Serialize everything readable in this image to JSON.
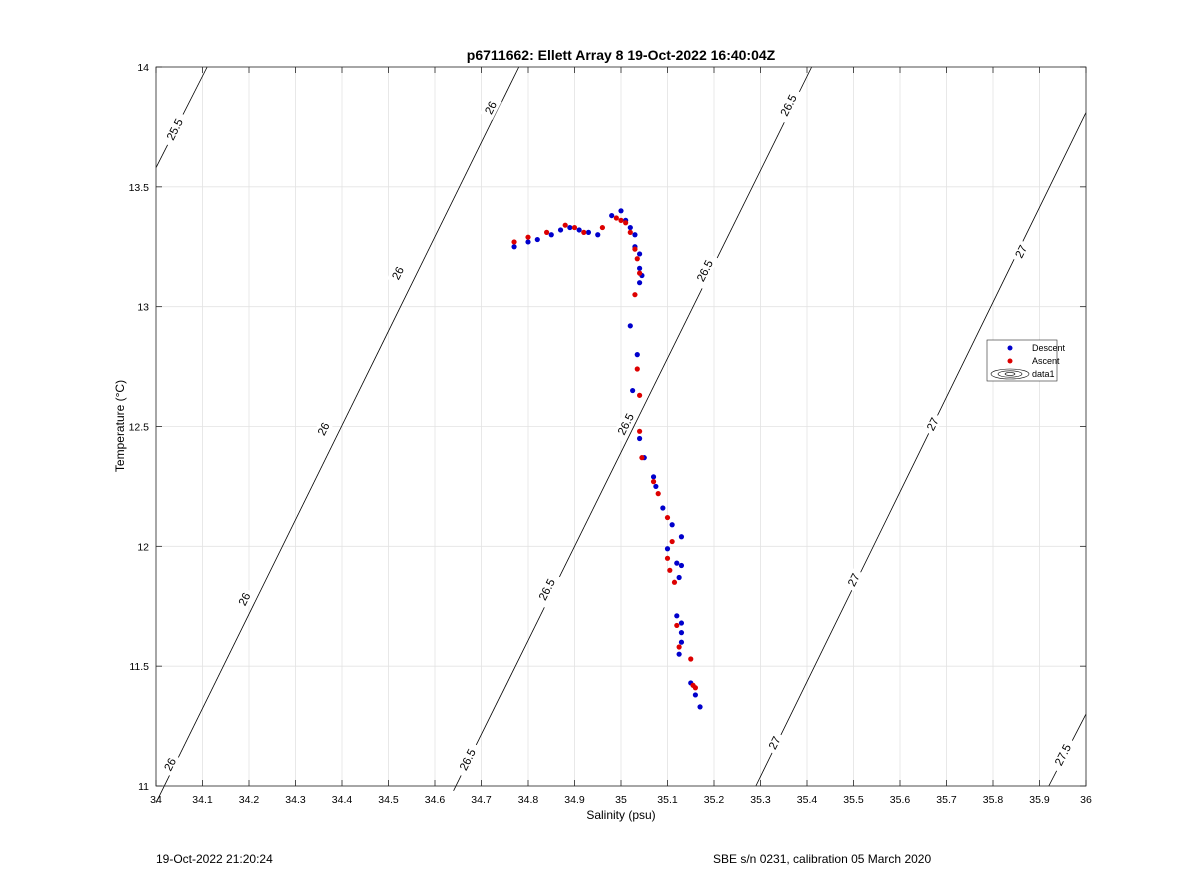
{
  "chart_data": {
    "type": "scatter",
    "title": "p6711662: Ellett Array 8 19-Oct-2022 16:40:04Z",
    "xlabel": "Salinity (psu)",
    "ylabel": "Temperature (°C)",
    "xlim": [
      34,
      36
    ],
    "ylim": [
      11,
      14
    ],
    "grid": true,
    "legend_position": "right",
    "x_ticks": [
      "34",
      "34.1",
      "34.2",
      "34.3",
      "34.4",
      "34.5",
      "34.6",
      "34.7",
      "34.8",
      "34.9",
      "35",
      "35.1",
      "35.2",
      "35.3",
      "35.4",
      "35.5",
      "35.6",
      "35.7",
      "35.8",
      "35.9",
      "36"
    ],
    "y_ticks": [
      "11",
      "11.5",
      "12",
      "12.5",
      "13",
      "13.5",
      "14"
    ],
    "series": [
      {
        "name": "Descent",
        "color": "#0000cc",
        "points": [
          [
            34.77,
            13.25
          ],
          [
            34.8,
            13.27
          ],
          [
            34.82,
            13.28
          ],
          [
            34.85,
            13.3
          ],
          [
            34.87,
            13.32
          ],
          [
            34.89,
            13.33
          ],
          [
            34.91,
            13.32
          ],
          [
            34.93,
            13.31
          ],
          [
            34.95,
            13.3
          ],
          [
            34.98,
            13.38
          ],
          [
            35.0,
            13.4
          ],
          [
            35.01,
            13.36
          ],
          [
            35.02,
            13.33
          ],
          [
            35.03,
            13.3
          ],
          [
            35.03,
            13.25
          ],
          [
            35.04,
            13.22
          ],
          [
            35.04,
            13.16
          ],
          [
            35.045,
            13.13
          ],
          [
            35.04,
            13.1
          ],
          [
            35.02,
            12.92
          ],
          [
            35.035,
            12.8
          ],
          [
            35.025,
            12.65
          ],
          [
            35.04,
            12.45
          ],
          [
            35.05,
            12.37
          ],
          [
            35.07,
            12.29
          ],
          [
            35.075,
            12.25
          ],
          [
            35.09,
            12.16
          ],
          [
            35.11,
            12.09
          ],
          [
            35.13,
            12.04
          ],
          [
            35.1,
            11.99
          ],
          [
            35.12,
            11.93
          ],
          [
            35.13,
            11.92
          ],
          [
            35.125,
            11.87
          ],
          [
            35.12,
            11.71
          ],
          [
            35.13,
            11.68
          ],
          [
            35.13,
            11.64
          ],
          [
            35.13,
            11.6
          ],
          [
            35.125,
            11.55
          ],
          [
            35.15,
            11.43
          ],
          [
            35.16,
            11.38
          ],
          [
            35.17,
            11.33
          ]
        ]
      },
      {
        "name": "Ascent",
        "color": "#dd0000",
        "points": [
          [
            34.77,
            13.27
          ],
          [
            34.8,
            13.29
          ],
          [
            34.84,
            13.31
          ],
          [
            34.88,
            13.34
          ],
          [
            34.9,
            13.33
          ],
          [
            34.92,
            13.31
          ],
          [
            34.96,
            13.33
          ],
          [
            34.99,
            13.37
          ],
          [
            35.0,
            13.36
          ],
          [
            35.01,
            13.35
          ],
          [
            35.02,
            13.31
          ],
          [
            35.03,
            13.24
          ],
          [
            35.035,
            13.2
          ],
          [
            35.04,
            13.14
          ],
          [
            35.03,
            13.05
          ],
          [
            35.035,
            12.74
          ],
          [
            35.04,
            12.63
          ],
          [
            35.04,
            12.48
          ],
          [
            35.045,
            12.37
          ],
          [
            35.07,
            12.27
          ],
          [
            35.08,
            12.22
          ],
          [
            35.1,
            12.12
          ],
          [
            35.11,
            12.02
          ],
          [
            35.1,
            11.95
          ],
          [
            35.105,
            11.9
          ],
          [
            35.115,
            11.85
          ],
          [
            35.12,
            11.67
          ],
          [
            35.125,
            11.58
          ],
          [
            35.15,
            11.53
          ],
          [
            35.155,
            11.42
          ],
          [
            35.16,
            11.41
          ]
        ]
      }
    ],
    "contours": [
      {
        "level": 25.5,
        "label": "25.5",
        "start": [
          34.0,
          13.58
        ],
        "end": [
          34.11,
          14.0
        ]
      },
      {
        "level": 26,
        "label": "26",
        "start": [
          34.0,
          10.93
        ],
        "end": [
          34.78,
          14.0
        ]
      },
      {
        "level": 26.5,
        "label": "26.5",
        "start": [
          34.64,
          10.98
        ],
        "end": [
          35.41,
          14.0
        ]
      },
      {
        "level": 27,
        "label": "27",
        "start": [
          35.29,
          11.0
        ],
        "end": [
          36.0,
          13.81
        ]
      },
      {
        "level": 27.5,
        "label": "27.5",
        "start": [
          35.92,
          11.0
        ],
        "end": [
          36.0,
          11.3
        ]
      }
    ],
    "contour_labels": [
      {
        "text": "25.5",
        "at": [
          34.04,
          13.74
        ]
      },
      {
        "text": "26",
        "at": [
          34.72,
          13.83
        ]
      },
      {
        "text": "26",
        "at": [
          34.52,
          13.14
        ]
      },
      {
        "text": "26",
        "at": [
          34.36,
          12.49
        ]
      },
      {
        "text": "26",
        "at": [
          34.19,
          11.78
        ]
      },
      {
        "text": "26",
        "at": [
          34.03,
          11.09
        ]
      },
      {
        "text": "26.5",
        "at": [
          35.36,
          13.84
        ]
      },
      {
        "text": "26.5",
        "at": [
          35.18,
          13.15
        ]
      },
      {
        "text": "26.5",
        "at": [
          35.01,
          12.51
        ]
      },
      {
        "text": "26.5",
        "at": [
          34.84,
          11.82
        ]
      },
      {
        "text": "26.5",
        "at": [
          34.67,
          11.11
        ]
      },
      {
        "text": "27",
        "at": [
          35.86,
          13.23
        ]
      },
      {
        "text": "27",
        "at": [
          35.67,
          12.51
        ]
      },
      {
        "text": "27",
        "at": [
          35.5,
          11.86
        ]
      },
      {
        "text": "27",
        "at": [
          35.33,
          11.18
        ]
      },
      {
        "text": "27.5",
        "at": [
          35.95,
          11.13
        ]
      }
    ],
    "legend": [
      "Descent",
      "Ascent",
      "data1"
    ]
  },
  "footer": {
    "left": "19-Oct-2022 21:20:24",
    "right": "SBE s/n 0231, calibration 05 March 2020"
  }
}
